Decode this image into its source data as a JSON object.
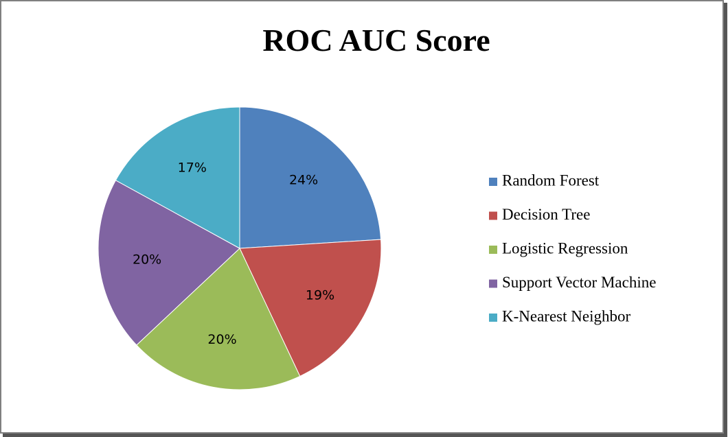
{
  "chart_data": {
    "type": "pie",
    "title": "ROC AUC Score",
    "categories": [
      "Random Forest",
      "Decision Tree",
      "Logistic Regression",
      "Support Vector Machine",
      "K-Nearest Neighbor"
    ],
    "values": [
      24,
      19,
      20,
      20,
      17
    ],
    "value_labels": [
      "24%",
      "19%",
      "20%",
      "20%",
      "17%"
    ],
    "colors": [
      "#4f81bd",
      "#c0504d",
      "#9bbb59",
      "#8064a2",
      "#4bacc6"
    ],
    "legend": "right"
  }
}
